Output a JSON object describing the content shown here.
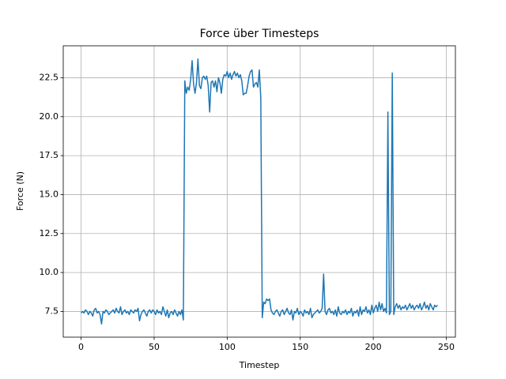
{
  "chart_data": {
    "type": "line",
    "title": "Force über Timesteps",
    "xlabel": "Timestep",
    "ylabel": "Force (N)",
    "x": [
      0,
      1,
      2,
      3,
      4,
      5,
      6,
      7,
      8,
      9,
      10,
      11,
      12,
      13,
      14,
      15,
      16,
      17,
      18,
      19,
      20,
      21,
      22,
      23,
      24,
      25,
      26,
      27,
      28,
      29,
      30,
      31,
      32,
      33,
      34,
      35,
      36,
      37,
      38,
      39,
      40,
      41,
      42,
      43,
      44,
      45,
      46,
      47,
      48,
      49,
      50,
      51,
      52,
      53,
      54,
      55,
      56,
      57,
      58,
      59,
      60,
      61,
      62,
      63,
      64,
      65,
      66,
      67,
      68,
      69,
      70,
      71,
      72,
      73,
      74,
      75,
      76,
      77,
      78,
      79,
      80,
      81,
      82,
      83,
      84,
      85,
      86,
      87,
      88,
      89,
      90,
      91,
      92,
      93,
      94,
      95,
      96,
      97,
      98,
      99,
      100,
      101,
      102,
      103,
      104,
      105,
      106,
      107,
      108,
      109,
      110,
      111,
      112,
      113,
      114,
      115,
      116,
      117,
      118,
      119,
      120,
      121,
      122,
      123,
      124,
      125,
      126,
      127,
      128,
      129,
      130,
      131,
      132,
      133,
      134,
      135,
      136,
      137,
      138,
      139,
      140,
      141,
      142,
      143,
      144,
      145,
      146,
      147,
      148,
      149,
      150,
      151,
      152,
      153,
      154,
      155,
      156,
      157,
      158,
      159,
      160,
      161,
      162,
      163,
      164,
      165,
      166,
      167,
      168,
      169,
      170,
      171,
      172,
      173,
      174,
      175,
      176,
      177,
      178,
      179,
      180,
      181,
      182,
      183,
      184,
      185,
      186,
      187,
      188,
      189,
      190,
      191,
      192,
      193,
      194,
      195,
      196,
      197,
      198,
      199,
      200,
      201,
      202,
      203,
      204,
      205,
      206,
      207,
      208,
      209,
      210,
      211,
      212,
      213,
      214,
      215,
      216,
      217,
      218,
      219,
      220,
      221,
      222,
      223,
      224,
      225,
      226,
      227,
      228,
      229,
      230,
      231,
      232,
      233,
      234,
      235,
      236,
      237,
      238,
      239,
      240,
      241,
      242,
      243,
      244
    ],
    "series": [
      {
        "color": "#1f77b4",
        "values": [
          7.4,
          7.5,
          7.4,
          7.6,
          7.5,
          7.3,
          7.5,
          7.4,
          7.2,
          7.6,
          7.7,
          7.4,
          7.5,
          7.3,
          6.7,
          7.5,
          7.4,
          7.6,
          7.5,
          7.3,
          7.4,
          7.5,
          7.6,
          7.4,
          7.7,
          7.5,
          7.4,
          7.8,
          7.3,
          7.5,
          7.6,
          7.4,
          7.5,
          7.3,
          7.6,
          7.5,
          7.4,
          7.6,
          7.5,
          7.7,
          6.9,
          7.3,
          7.5,
          7.6,
          7.4,
          7.2,
          7.5,
          7.6,
          7.4,
          7.6,
          7.5,
          7.3,
          7.6,
          7.4,
          7.5,
          7.3,
          7.8,
          7.5,
          7.2,
          7.6,
          7.1,
          7.4,
          7.5,
          7.3,
          7.6,
          7.4,
          7.2,
          7.5,
          7.3,
          7.6,
          6.95,
          22.3,
          21.5,
          21.9,
          21.7,
          22.4,
          23.6,
          22.1,
          21.5,
          22.2,
          23.7,
          22.0,
          21.8,
          22.5,
          22.6,
          22.4,
          22.6,
          22.0,
          20.3,
          22.2,
          22.3,
          21.9,
          22.3,
          21.6,
          22.5,
          22.2,
          21.5,
          22.4,
          22.7,
          22.6,
          22.9,
          22.5,
          22.8,
          22.4,
          22.7,
          22.9,
          22.6,
          22.8,
          22.5,
          22.7,
          22.3,
          21.4,
          21.5,
          21.5,
          22.0,
          22.6,
          22.9,
          23.0,
          21.9,
          22.1,
          22.2,
          21.9,
          23.0,
          21.2,
          7.1,
          8.1,
          8.0,
          8.3,
          8.2,
          8.3,
          7.6,
          7.4,
          7.3,
          7.5,
          7.6,
          7.4,
          7.2,
          7.5,
          7.6,
          7.3,
          7.5,
          7.7,
          7.4,
          7.3,
          7.6,
          6.95,
          7.5,
          7.4,
          7.7,
          7.3,
          7.5,
          7.4,
          7.2,
          7.6,
          7.4,
          7.5,
          7.3,
          7.7,
          7.1,
          7.3,
          7.4,
          7.5,
          7.6,
          7.4,
          7.5,
          7.7,
          9.9,
          7.5,
          7.3,
          7.6,
          7.7,
          7.4,
          7.5,
          7.3,
          7.6,
          7.2,
          7.8,
          7.4,
          7.3,
          7.5,
          7.4,
          7.6,
          7.3,
          7.5,
          7.4,
          7.7,
          7.2,
          7.5,
          7.4,
          7.6,
          7.2,
          7.8,
          7.3,
          7.6,
          7.5,
          7.8,
          7.4,
          7.6,
          7.3,
          7.9,
          7.4,
          7.7,
          7.9,
          7.5,
          8.1,
          7.6,
          8.0,
          7.5,
          7.7,
          7.4,
          20.3,
          7.3,
          7.5,
          22.8,
          7.3,
          7.8,
          8.0,
          7.7,
          7.9,
          7.6,
          7.8,
          7.7,
          7.9,
          7.6,
          7.8,
          8.0,
          7.7,
          7.9,
          7.6,
          7.8,
          7.9,
          7.7,
          8.0,
          7.6,
          7.8,
          8.1,
          7.7,
          7.9,
          7.6,
          8.0,
          7.8,
          7.6,
          7.9,
          7.8,
          7.9
        ]
      }
    ],
    "xlim": [
      -12.2,
      256.2
    ],
    "xticks": [
      0,
      50,
      100,
      150,
      200,
      250
    ],
    "ylim": [
      5.85,
      24.55
    ],
    "yticks": [
      7.5,
      {
        "value": 10,
        "label": "10.0"
      },
      12.5,
      {
        "value": 15,
        "label": "15.0"
      },
      17.5,
      {
        "value": 20,
        "label": "20.0"
      },
      22.5
    ],
    "grid": true
  }
}
